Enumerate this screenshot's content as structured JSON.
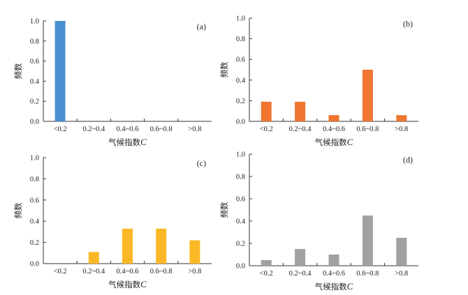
{
  "chart_data": [
    {
      "type": "bar",
      "panel_label": "(a)",
      "categories": [
        "<0.2",
        "0.2~0.4",
        "0.4~0.6",
        "0.6~0.8",
        ">0.8"
      ],
      "values": [
        1.0,
        0,
        0,
        0,
        0
      ],
      "xlabel": "气候指数",
      "xlabel_var": "C",
      "ylabel": "频数",
      "ylim": [
        0,
        1.0
      ],
      "yticks": [
        "0.0",
        "0.2",
        "0.4",
        "0.6",
        "0.8",
        "1.0"
      ],
      "color": "#4a90d0"
    },
    {
      "type": "bar",
      "panel_label": "(b)",
      "categories": [
        "<0.2",
        "0.2~0.4",
        "0.4~0.6",
        "0.6~0.8",
        ">0.8"
      ],
      "values": [
        0.19,
        0.19,
        0.06,
        0.5,
        0.06
      ],
      "xlabel": "气候指数",
      "xlabel_var": "C",
      "ylabel": "频数",
      "ylim": [
        0,
        1.0
      ],
      "yticks": [
        "0.0",
        "0.2",
        "0.4",
        "0.6",
        "0.8",
        "1.0"
      ],
      "color": "#ef7530"
    },
    {
      "type": "bar",
      "panel_label": "(c)",
      "categories": [
        "<0.2",
        "0.2~0.4",
        "0.4~0.6",
        "0.6~0.8",
        ">0.8"
      ],
      "values": [
        0,
        0.11,
        0.33,
        0.33,
        0.22
      ],
      "xlabel": "气候指数",
      "xlabel_var": "C",
      "ylabel": "频数",
      "ylim": [
        0,
        1.0
      ],
      "yticks": [
        "0.0",
        "0.2",
        "0.4",
        "0.6",
        "0.8",
        "1.0"
      ],
      "color": "#fbb826"
    },
    {
      "type": "bar",
      "panel_label": "(d)",
      "categories": [
        "<0.2",
        "0.2~0.4",
        "0.4~0.6",
        "0.6~0.8",
        ">0.8"
      ],
      "values": [
        0.05,
        0.15,
        0.1,
        0.45,
        0.25
      ],
      "xlabel": "气候指数",
      "xlabel_var": "C",
      "ylabel": "频数",
      "ylim": [
        0,
        1.0
      ],
      "yticks": [
        "0.0",
        "0.2",
        "0.4",
        "0.6",
        "0.8",
        "1.0"
      ],
      "color": "#a1a1a4"
    }
  ]
}
